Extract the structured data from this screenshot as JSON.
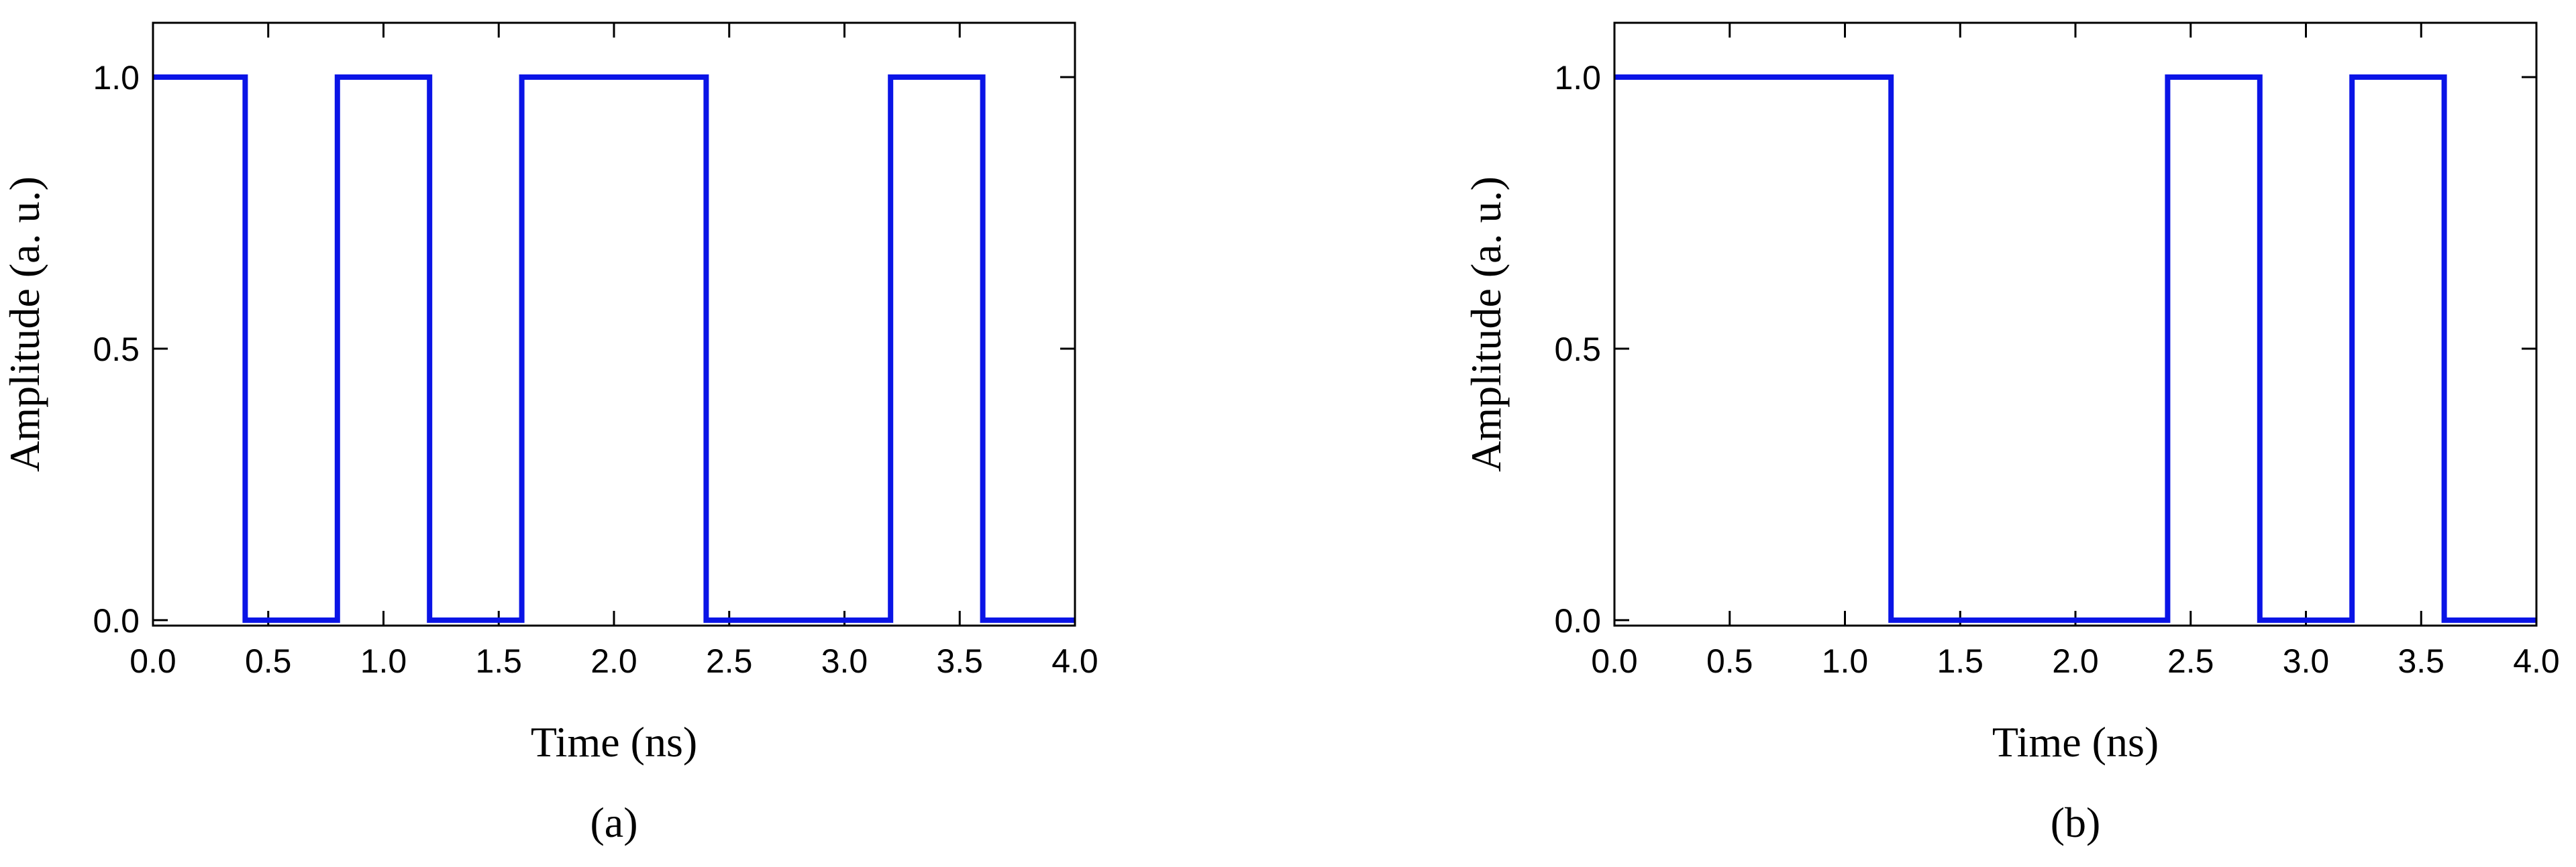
{
  "chart_data": [
    {
      "type": "line",
      "xlabel": "Time (ns)",
      "ylabel": "Amplitude (a. u.)",
      "caption": "(a)",
      "x": [
        0,
        0.4,
        0.4,
        0.8,
        0.8,
        1.2,
        1.2,
        1.6,
        1.6,
        2.4,
        2.4,
        3.2,
        3.2,
        3.6,
        3.6,
        4.0
      ],
      "series": [
        {
          "color": "#0a14e6",
          "values": [
            1,
            1,
            0,
            0,
            1,
            1,
            0,
            0,
            1,
            1,
            0,
            0,
            1,
            1,
            0,
            0
          ]
        }
      ],
      "xlim": [
        0,
        4
      ],
      "ylim": [
        -0.01,
        1.1
      ],
      "xticks": [
        {
          "value": 0,
          "label": "0.0"
        },
        0.5,
        {
          "value": 1,
          "label": "1.0"
        },
        1.5,
        {
          "value": 2,
          "label": "2.0"
        },
        2.5,
        {
          "value": 3,
          "label": "3.0"
        },
        3.5,
        {
          "value": 4,
          "label": "4.0"
        }
      ],
      "yticks": [
        {
          "value": 0,
          "label": "0.0"
        },
        0.5,
        {
          "value": 1,
          "label": "1.0"
        }
      ]
    },
    {
      "type": "line",
      "xlabel": "Time (ns)",
      "ylabel": "Amplitude (a. u.)",
      "caption": "(b)",
      "x": [
        0,
        1.2,
        1.2,
        2.4,
        2.4,
        2.8,
        2.8,
        3.2,
        3.2,
        3.6,
        3.6,
        4.0
      ],
      "series": [
        {
          "color": "#0a14e6",
          "values": [
            1,
            1,
            0,
            0,
            1,
            1,
            0,
            0,
            1,
            1,
            0,
            0
          ]
        }
      ],
      "xlim": [
        0,
        4
      ],
      "ylim": [
        -0.01,
        1.1
      ],
      "xticks": [
        {
          "value": 0,
          "label": "0.0"
        },
        0.5,
        {
          "value": 1,
          "label": "1.0"
        },
        1.5,
        {
          "value": 2,
          "label": "2.0"
        },
        2.5,
        {
          "value": 3,
          "label": "3.0"
        },
        3.5,
        {
          "value": 4,
          "label": "4.0"
        }
      ],
      "yticks": [
        {
          "value": 0,
          "label": "0.0"
        },
        0.5,
        {
          "value": 1,
          "label": "1.0"
        }
      ]
    }
  ]
}
